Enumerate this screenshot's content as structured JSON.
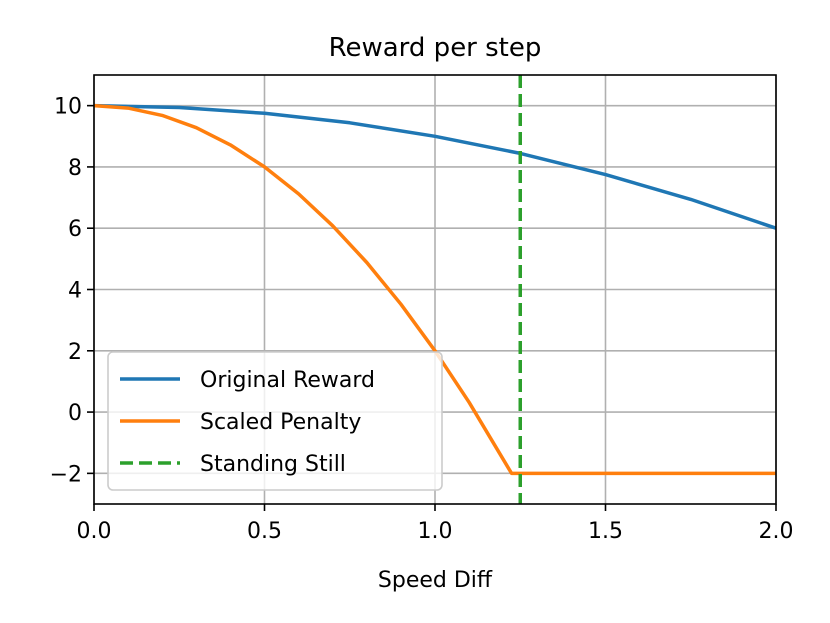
{
  "chart_data": {
    "type": "line",
    "title": "Reward per step",
    "xlabel": "Speed Diff",
    "ylabel": "",
    "xlim": [
      0.0,
      2.0
    ],
    "ylim": [
      -3,
      11
    ],
    "xticks": [
      0.0,
      0.5,
      1.0,
      1.5,
      2.0
    ],
    "xtick_labels": [
      "0.0",
      "0.5",
      "1.0",
      "1.5",
      "2.0"
    ],
    "yticks": [
      -2,
      0,
      2,
      4,
      6,
      8,
      10
    ],
    "ytick_labels": [
      "−2",
      "0",
      "2",
      "4",
      "6",
      "8",
      "10"
    ],
    "grid": true,
    "legend_position": "lower-left",
    "series": [
      {
        "name": "Original Reward",
        "color": "#1f77b4",
        "style": "solid",
        "x": [
          0.0,
          0.25,
          0.5,
          0.75,
          1.0,
          1.25,
          1.5,
          1.75,
          2.0
        ],
        "y": [
          10.0,
          9.94,
          9.75,
          9.44,
          9.0,
          8.44,
          7.75,
          6.94,
          6.0
        ]
      },
      {
        "name": "Scaled Penalty",
        "color": "#ff7f0e",
        "style": "solid",
        "x": [
          0.0,
          0.1,
          0.2,
          0.3,
          0.4,
          0.5,
          0.6,
          0.7,
          0.8,
          0.9,
          1.0,
          1.1,
          1.2247,
          1.5,
          2.0
        ],
        "y": [
          10.0,
          9.92,
          9.68,
          9.28,
          8.72,
          8.0,
          7.12,
          6.08,
          4.88,
          3.52,
          2.0,
          0.32,
          -2.0,
          -2.0,
          -2.0
        ]
      },
      {
        "name": "Standing Still",
        "color": "#2ca02c",
        "style": "dashed",
        "vline_x": 1.25
      }
    ]
  }
}
